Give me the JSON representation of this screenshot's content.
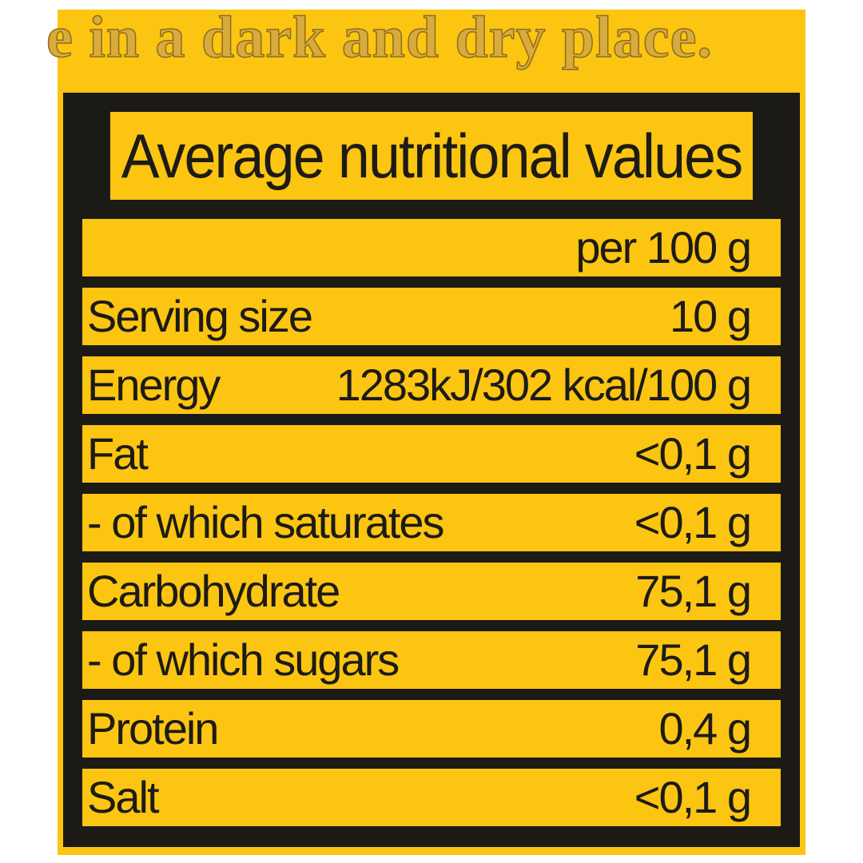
{
  "background_text": "e in a dark and dry place.",
  "colors": {
    "label_yellow": "#fbc512",
    "ink": "#1d1b16",
    "background_text": "#d8ab3e"
  },
  "table": {
    "title": "Average nutritional values",
    "header_value": "per 100 g",
    "rows": [
      {
        "name": "Serving size",
        "value": "10 g"
      },
      {
        "name": "Energy",
        "value": "1283kJ/302 kcal/100 g"
      },
      {
        "name": "Fat",
        "value": "<0,1 g"
      },
      {
        "name": "- of which saturates",
        "value": "<0,1 g"
      },
      {
        "name": "Carbohydrate",
        "value": "75,1 g"
      },
      {
        "name": "- of which sugars",
        "value": "75,1 g"
      },
      {
        "name": "Protein",
        "value": "0,4 g"
      },
      {
        "name": "Salt",
        "value": "<0,1 g"
      }
    ]
  }
}
